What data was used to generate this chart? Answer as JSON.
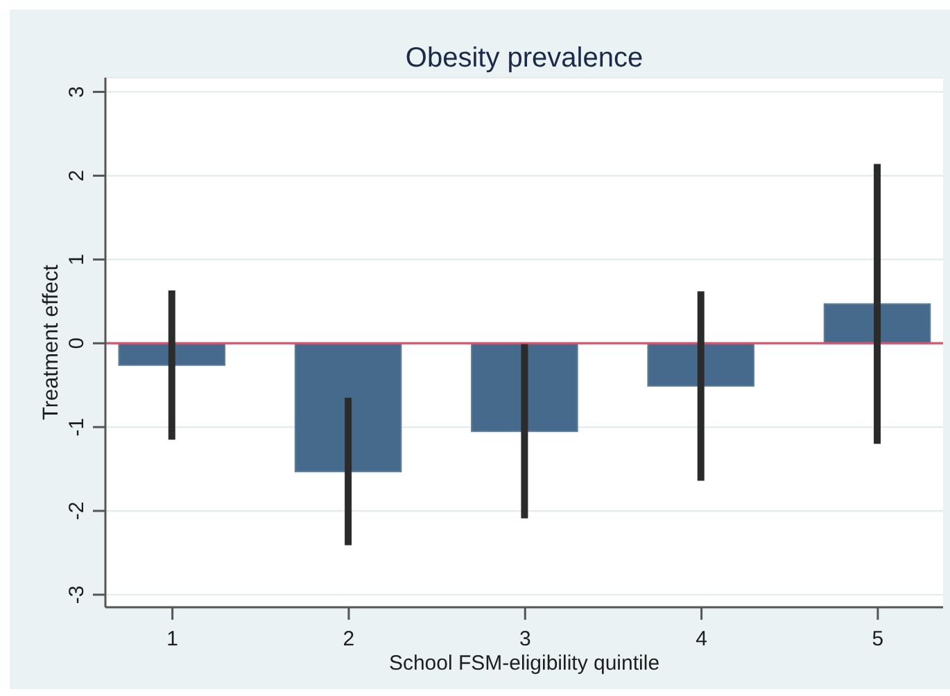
{
  "chart_data": {
    "type": "bar",
    "title": "Obesity prevalence",
    "xlabel": "School FSM-eligibility quintile",
    "ylabel": "Treatment effect",
    "x": [
      1,
      2,
      3,
      4,
      5
    ],
    "values": [
      -0.26,
      -1.53,
      -1.05,
      -0.51,
      0.47
    ],
    "errors": [
      0.89,
      0.88,
      1.04,
      1.13,
      1.67
    ],
    "color": "#466a8c",
    "xlim": [
      0.62,
      5.37
    ],
    "xticks": [
      1,
      2,
      3,
      4,
      5
    ],
    "ylim": [
      -3.15,
      3.17
    ],
    "yticks": [
      -3,
      -2,
      -1,
      0,
      1,
      2,
      3
    ],
    "grid": "y",
    "ref_lines": [
      {
        "axis": "y",
        "value": 0,
        "color": "#d9536e"
      }
    ]
  }
}
